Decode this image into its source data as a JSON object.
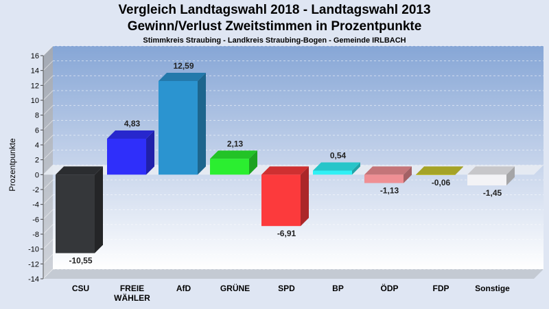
{
  "chart_data": {
    "type": "bar",
    "title": "Vergleich Landtagswahl 2018 - Landtagswahl 2013",
    "subtitle": "Gewinn/Verlust Zweitstimmen in Prozentpunkte",
    "caption": "Stimmkreis Straubing - Landkreis Straubing-Bogen - Gemeinde IRLBACH",
    "xlabel": "",
    "ylabel": "Prozentpunkte",
    "ylim": [
      -14,
      16
    ],
    "yticks": [
      16,
      14,
      12,
      10,
      8,
      6,
      4,
      2,
      0,
      -2,
      -4,
      -6,
      -8,
      -10,
      -12,
      -14
    ],
    "grid": true,
    "legend": "none",
    "categories": [
      "CSU",
      "FREIE WÄHLER",
      "AfD",
      "GRÜNE",
      "SPD",
      "BP",
      "ÖDP",
      "FDP",
      "Sonstige"
    ],
    "category_lines": [
      [
        "CSU"
      ],
      [
        "FREIE",
        "WÄHLER"
      ],
      [
        "AfD"
      ],
      [
        "GRÜNE"
      ],
      [
        "SPD"
      ],
      [
        "BP"
      ],
      [
        "ÖDP"
      ],
      [
        "FDP"
      ],
      [
        "Sonstige"
      ]
    ],
    "values": [
      -10.55,
      4.83,
      12.59,
      2.13,
      -6.91,
      0.54,
      -1.13,
      -0.06,
      -1.45
    ],
    "value_labels": [
      "-10,55",
      "4,83",
      "12,59",
      "2,13",
      "-6,91",
      "0,54",
      "-1,13",
      "-0,06",
      "-1,45"
    ],
    "colors": [
      "#35373a",
      "#2f2ffa",
      "#2b94d0",
      "#2bee30",
      "#fc3a3c",
      "#2ff0f5",
      "#ef8f94",
      "#c9c72f",
      "#f3f3f6"
    ]
  }
}
